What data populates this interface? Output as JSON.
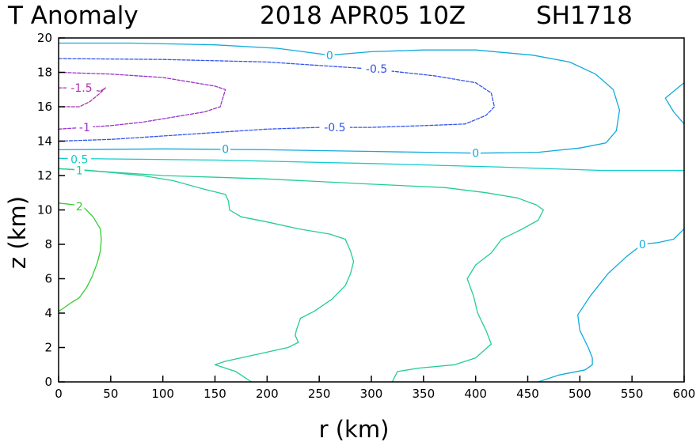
{
  "title": {
    "left": "T Anomaly",
    "date": "2018 APR05 10Z",
    "storm": "SH1718"
  },
  "chart_data": {
    "type": "contour",
    "title": "T Anomaly 2018 APR05 10Z SH1718",
    "xlabel": "r (km)",
    "ylabel": "z (km)",
    "xlim": [
      0,
      600
    ],
    "ylim": [
      0,
      20
    ],
    "xticks": [
      "0",
      "50",
      "100",
      "150",
      "200",
      "250",
      "300",
      "350",
      "400",
      "450",
      "500",
      "550",
      "600"
    ],
    "yticks": [
      "0",
      "2",
      "4",
      "6",
      "8",
      "10",
      "12",
      "14",
      "16",
      "18",
      "20"
    ],
    "contours": [
      {
        "level": "2",
        "color": "#33cc33",
        "dash": false,
        "points": [
          [
            0,
            10.4
          ],
          [
            15,
            10.3
          ],
          [
            25,
            10.1
          ],
          [
            33,
            9.6
          ],
          [
            40,
            8.9
          ],
          [
            41,
            8.3
          ],
          [
            40,
            7.6
          ],
          [
            37,
            6.9
          ],
          [
            32,
            6.1
          ],
          [
            27,
            5.5
          ],
          [
            20,
            4.9
          ],
          [
            12,
            4.6
          ],
          [
            5,
            4.3
          ],
          [
            0,
            4.1
          ]
        ],
        "labels": [
          {
            "x": 20,
            "y": 10.2
          }
        ]
      },
      {
        "level": "1",
        "color": "#22cc99",
        "dash": false,
        "points": [
          [
            0,
            12.4
          ],
          [
            30,
            12.3
          ],
          [
            80,
            12.0
          ],
          [
            110,
            11.7
          ],
          [
            140,
            11.2
          ],
          [
            160,
            10.9
          ],
          [
            163,
            10.5
          ],
          [
            164,
            10.0
          ],
          [
            175,
            9.6
          ],
          [
            200,
            9.3
          ],
          [
            230,
            8.9
          ],
          [
            260,
            8.6
          ],
          [
            275,
            8.3
          ],
          [
            280,
            7.6
          ],
          [
            283,
            7.0
          ],
          [
            280,
            6.3
          ],
          [
            275,
            5.6
          ],
          [
            262,
            4.8
          ],
          [
            245,
            4.1
          ],
          [
            232,
            3.7
          ],
          [
            228,
            3.0
          ],
          [
            227,
            2.7
          ],
          [
            230,
            2.3
          ],
          [
            220,
            2.0
          ],
          [
            190,
            1.6
          ],
          [
            160,
            1.2
          ],
          [
            150,
            1.0
          ],
          [
            170,
            0.6
          ],
          [
            185,
            0
          ]
        ],
        "labels": [
          {
            "x": 20,
            "y": 12.3
          }
        ]
      },
      {
        "level": "1",
        "color": "#22cc99",
        "dash": false,
        "points": [
          [
            0,
            12.4
          ],
          [
            100,
            12.0
          ],
          [
            200,
            11.8
          ],
          [
            300,
            11.5
          ],
          [
            370,
            11.3
          ],
          [
            410,
            11.0
          ],
          [
            440,
            10.7
          ],
          [
            458,
            10.3
          ],
          [
            465,
            10.0
          ],
          [
            460,
            9.4
          ],
          [
            445,
            8.9
          ],
          [
            425,
            8.3
          ],
          [
            415,
            7.5
          ],
          [
            400,
            6.8
          ],
          [
            392,
            6.0
          ],
          [
            398,
            5.0
          ],
          [
            402,
            4.0
          ],
          [
            410,
            3.0
          ],
          [
            415,
            2.2
          ],
          [
            400,
            1.4
          ],
          [
            380,
            1.0
          ],
          [
            345,
            0.8
          ],
          [
            325,
            0.6
          ],
          [
            320,
            0
          ]
        ],
        "labels": []
      },
      {
        "level": "0.5",
        "color": "#11cccc",
        "dash": false,
        "points": [
          [
            0,
            13.0
          ],
          [
            150,
            12.9
          ],
          [
            300,
            12.7
          ],
          [
            420,
            12.5
          ],
          [
            520,
            12.3
          ],
          [
            600,
            12.3
          ]
        ],
        "labels": [
          {
            "x": 20,
            "y": 12.95
          }
        ]
      },
      {
        "level": "0",
        "color": "#11aadd",
        "dash": false,
        "points": [
          [
            0,
            13.5
          ],
          [
            100,
            13.55
          ],
          [
            200,
            13.5
          ],
          [
            300,
            13.4
          ],
          [
            400,
            13.3
          ],
          [
            460,
            13.35
          ],
          [
            500,
            13.6
          ],
          [
            525,
            13.9
          ],
          [
            535,
            14.6
          ],
          [
            538,
            15.8
          ],
          [
            532,
            17.0
          ],
          [
            515,
            17.9
          ],
          [
            490,
            18.6
          ],
          [
            455,
            19.0
          ],
          [
            400,
            19.3
          ],
          [
            350,
            19.3
          ],
          [
            300,
            19.2
          ],
          [
            260,
            19.0
          ],
          [
            210,
            19.4
          ],
          [
            150,
            19.6
          ],
          [
            70,
            19.7
          ],
          [
            0,
            19.7
          ]
        ],
        "labels": [
          {
            "x": 160,
            "y": 13.55
          },
          {
            "x": 400,
            "y": 13.3
          },
          {
            "x": 260,
            "y": 19.0
          }
        ]
      },
      {
        "level": "0",
        "color": "#11aadd",
        "dash": false,
        "points": [
          [
            600,
            17.4
          ],
          [
            590,
            16.9
          ],
          [
            582,
            16.5
          ],
          [
            590,
            15.7
          ],
          [
            600,
            15.0
          ]
        ],
        "labels": []
      },
      {
        "level": "0",
        "color": "#11aadd",
        "dash": false,
        "points": [
          [
            600,
            8.9
          ],
          [
            590,
            8.3
          ],
          [
            575,
            8.1
          ],
          [
            560,
            8.0
          ],
          [
            545,
            7.3
          ],
          [
            527,
            6.3
          ],
          [
            510,
            5.0
          ],
          [
            498,
            3.9
          ],
          [
            500,
            3.0
          ],
          [
            508,
            2.0
          ],
          [
            512,
            1.4
          ],
          [
            512,
            1.0
          ],
          [
            505,
            0.7
          ],
          [
            480,
            0.4
          ],
          [
            460,
            0
          ]
        ],
        "labels": [
          {
            "x": 560,
            "y": 8.0
          }
        ]
      },
      {
        "level": "-0.5",
        "color": "#3355ee",
        "dash": true,
        "points": [
          [
            0,
            18.8
          ],
          [
            100,
            18.75
          ],
          [
            200,
            18.6
          ],
          [
            300,
            18.2
          ],
          [
            360,
            17.8
          ],
          [
            400,
            17.4
          ],
          [
            415,
            16.8
          ],
          [
            418,
            16.0
          ],
          [
            410,
            15.5
          ],
          [
            390,
            15.0
          ],
          [
            350,
            14.9
          ],
          [
            300,
            14.8
          ],
          [
            250,
            14.8
          ],
          [
            200,
            14.7
          ],
          [
            150,
            14.5
          ],
          [
            100,
            14.3
          ],
          [
            50,
            14.1
          ],
          [
            0,
            14.0
          ]
        ],
        "labels": [
          {
            "x": 305,
            "y": 18.2
          },
          {
            "x": 265,
            "y": 14.8
          }
        ]
      },
      {
        "level": "-1",
        "color": "#9933cc",
        "dash": true,
        "points": [
          [
            0,
            18.0
          ],
          [
            50,
            17.9
          ],
          [
            100,
            17.7
          ],
          [
            150,
            17.2
          ],
          [
            160,
            17.0
          ],
          [
            155,
            16.0
          ],
          [
            140,
            15.7
          ],
          [
            110,
            15.4
          ],
          [
            80,
            15.1
          ],
          [
            50,
            14.9
          ],
          [
            25,
            14.8
          ],
          [
            0,
            14.7
          ]
        ],
        "labels": [
          {
            "x": 25,
            "y": 14.8
          }
        ]
      },
      {
        "level": "-1.5",
        "color": "#aa33aa",
        "dash": true,
        "points": [
          [
            0,
            17.1
          ],
          [
            20,
            17.1
          ],
          [
            40,
            16.9
          ],
          [
            45,
            17.1
          ],
          [
            40,
            16.8
          ],
          [
            30,
            16.3
          ],
          [
            20,
            16.0
          ],
          [
            5,
            16.0
          ],
          [
            0,
            16.0
          ]
        ],
        "labels": [
          {
            "x": 22,
            "y": 17.1
          }
        ]
      }
    ]
  }
}
